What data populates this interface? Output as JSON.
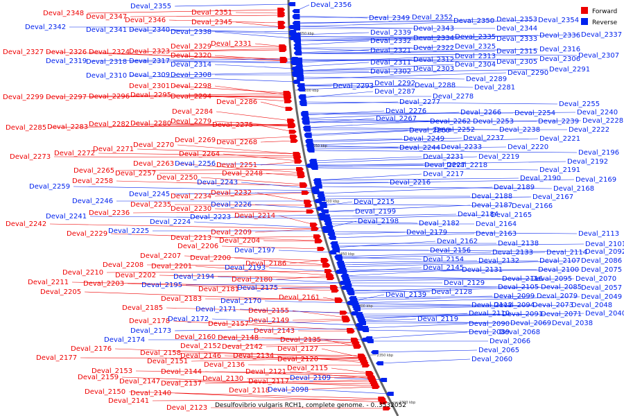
{
  "caption": "Desulfovibrio vulgaris RCH1, complete genome. - 0..3532052",
  "legend": {
    "forward": {
      "label": "Forward",
      "color": "#ee0000"
    },
    "reverse": {
      "label": "Reverse",
      "color": "#0022ee"
    }
  },
  "scale_labels": [
    "2650 kbp",
    "2600 kbp",
    "2550 kbp",
    "2500 kbp",
    "2450 kbp",
    "2400 kbp",
    "2350 kbp",
    "2300 kbp"
  ],
  "forward_labels": [
    "Deval_2348",
    "Deval_2347",
    "Deval_2351",
    "Deval_2346",
    "Deval_2345",
    "Deval_2327",
    "Deval_2326",
    "Deval_2324",
    "Deval_2323",
    "Deval_2329",
    "Deval_2331",
    "Deval_2320",
    "Deval_2301",
    "Deval_2298",
    "Deval_2299",
    "Deval_2297",
    "Deval_2296",
    "Deval_2295",
    "Deval_2294",
    "Deval_2286",
    "Deval_2284",
    "Deval_2285",
    "Deval_2283",
    "Deval_2282",
    "Deval_2280",
    "Deval_2279",
    "Deval_2275",
    "Deval_2270",
    "Deval_2269",
    "Deval_2268",
    "Deval_2273",
    "Deval_2272",
    "Deval_2271",
    "Deval_2264",
    "Deval_2263",
    "Deval_2251",
    "Deval_2265",
    "Deval_2257",
    "Deval_2248",
    "Deval_2258",
    "Deval_2250",
    "Deval_2232",
    "Deval_2234",
    "Deval_2236",
    "Deval_2235",
    "Deval_2230",
    "Deval_2242",
    "Deval_2229",
    "Deval_2214",
    "Deval_2209",
    "Deval_2213",
    "Deval_2204",
    "Deval_2206",
    "Deval_2207",
    "Deval_2200",
    "Deval_2201",
    "Deval_2186",
    "Deval_2210",
    "Deval_2208",
    "Deval_2202",
    "Deval_2211",
    "Deval_2203",
    "Deval_2205",
    "Deval_2180",
    "Deval_2181",
    "Deval_2183",
    "Deval_2161",
    "Deval_2185",
    "Deval_2155",
    "Deval_2178",
    "Deval_2157",
    "Deval_2149",
    "Deval_2143",
    "Deval_2160",
    "Deval_2148",
    "Deval_2135",
    "Deval_2176",
    "Deval_2152",
    "Deval_2142",
    "Deval_2177",
    "Deval_2158",
    "Deval_2146",
    "Deval_2134",
    "Deval_2127",
    "Deval_2151",
    "Deval_2120",
    "Deval_2136",
    "Deval_2153",
    "Deval_2144",
    "Deval_2121",
    "Deval_2159",
    "Deval_2137",
    "Deval_2130",
    "Deval_2117",
    "Deval_2147",
    "Deval_2115",
    "Deval_2150",
    "Deval_2140",
    "Deval_2118",
    "Deval_2141",
    "Deval_2123"
  ],
  "reverse_labels": [
    "Deval_2355",
    "Deval_2342",
    "Deval_2341",
    "Deval_2340",
    "Deval_2338",
    "Deval_2319",
    "Deval_2318",
    "Deval_2317",
    "Deval_2314",
    "Deval_2310",
    "Deval_2309",
    "Deval_2308",
    "Deval_2256",
    "Deval_2259",
    "Deval_2243",
    "Deval_2245",
    "Deval_2246",
    "Deval_2241",
    "Deval_2226",
    "Deval_2224",
    "Deval_2223",
    "Deval_2225",
    "Deval_2197",
    "Deval_2193",
    "Deval_2194",
    "Deval_2195",
    "Deval_2175",
    "Deval_2170",
    "Deval_2171",
    "Deval_2172",
    "Deval_2173",
    "Deval_2174",
    "Deval_2109",
    "Deval_2098",
    "Deval_2356",
    "Deval_2349",
    "Deval_2352",
    "Deval_2350",
    "Deval_2353",
    "Deval_2354",
    "Deval_2343",
    "Deval_2344",
    "Deval_2339",
    "Deval_2336",
    "Deval_2337",
    "Deval_2334",
    "Deval_2335",
    "Deval_2333",
    "Deval_2332",
    "Deval_2325",
    "Deval_2321",
    "Deval_2322",
    "Deval_2315",
    "Deval_2316",
    "Deval_2313",
    "Deval_2307",
    "Deval_2312",
    "Deval_2306",
    "Deval_2311",
    "Deval_2304",
    "Deval_2305",
    "Deval_2302",
    "Deval_2303",
    "Deval_2291",
    "Deval_2290",
    "Deval_2289",
    "Deval_2293",
    "Deval_2292",
    "Deval_2288",
    "Deval_2287",
    "Deval_2281",
    "Deval_2278",
    "Deval_2277",
    "Deval_2276",
    "Deval_2266",
    "Deval_2255",
    "Deval_2254",
    "Deval_2240",
    "Deval_2267",
    "Deval_2262",
    "Deval_2253",
    "Deval_2239",
    "Deval_2228",
    "Deval_2260",
    "Deval_2252",
    "Deval_2238",
    "Deval_2222",
    "Deval_2249",
    "Deval_2237",
    "Deval_2221",
    "Deval_2244",
    "Deval_2233",
    "Deval_2220",
    "Deval_2231",
    "Deval_2219",
    "Deval_2196",
    "Deval_2227",
    "Deval_2218",
    "Deval_2192",
    "Deval_2217",
    "Deval_2191",
    "Deval_2216",
    "Deval_2190",
    "Deval_2169",
    "Deval_2189",
    "Deval_2168",
    "Deval_2188",
    "Deval_2167",
    "Deval_2215",
    "Deval_2187",
    "Deval_2166",
    "Deval_2199",
    "Deval_2184",
    "Deval_2165",
    "Deval_2198",
    "Deval_2182",
    "Deval_2164",
    "Deval_2179",
    "Deval_2163",
    "Deval_2162",
    "Deval_2113",
    "Deval_2138",
    "Deval_2101",
    "Deval_2133",
    "Deval_2114",
    "Deval_2092",
    "Deval_2156",
    "Deval_2132",
    "Deval_2107",
    "Deval_2086",
    "Deval_2154",
    "Deval_2100",
    "Deval_2075",
    "Deval_2145",
    "Deval_2131",
    "Deval_2116",
    "Deval_2095",
    "Deval_2070",
    "Deval_2105",
    "Deval_2085",
    "Deval_2057",
    "Deval_2129",
    "Deval_2099",
    "Deval_2079",
    "Deval_2049",
    "Deval_2128",
    "Deval_2094",
    "Deval_2073",
    "Deval_2048",
    "Deval_2139",
    "Deval_2112",
    "Deval_2091",
    "Deval_2071",
    "Deval_2040",
    "Deval_2110",
    "Deval_2069",
    "Deval_2038",
    "Deval_2119",
    "Deval_2090",
    "Deval_2089",
    "Deval_2068",
    "Deval_2066",
    "Deval_2065",
    "Deval_2060"
  ]
}
